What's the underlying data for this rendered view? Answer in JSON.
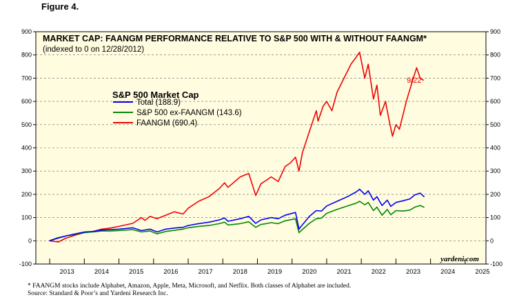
{
  "figure_label": "Figure 4.",
  "chart_data": {
    "type": "line",
    "title": "MARKET CAP: FAANGM PERFORMANCE RELATIVE TO S&P 500 WITH & WITHOUT FAANGM*",
    "subtitle": "(indexed to 0 on 12/28/2012)",
    "legend_title": "S&P 500 Market Cap",
    "legend_position": "top-left",
    "xlabel": "",
    "ylabel": "",
    "x_tick_labels": [
      "2013",
      "2014",
      "2015",
      "2016",
      "2017",
      "2018",
      "2019",
      "2020",
      "2021",
      "2022",
      "2023",
      "2024",
      "2025"
    ],
    "xlim": [
      2012.6,
      2025.6
    ],
    "y_ticks": [
      -100,
      0,
      100,
      200,
      300,
      400,
      500,
      600,
      700,
      800,
      900
    ],
    "ylim": [
      -100,
      900
    ],
    "grid": "horizontal-dashed",
    "annotation": "9/22",
    "watermark": "yardeni.com",
    "colors": {
      "Total": "#0000ee",
      "ExFAANGM": "#008800",
      "FAANGM": "#ee0000",
      "background": "#fffce0"
    },
    "series": [
      {
        "name": "Total (188.9)",
        "color": "#0000ee",
        "points": [
          [
            2012.99,
            0
          ],
          [
            2013.25,
            12
          ],
          [
            2013.5,
            22
          ],
          [
            2013.75,
            30
          ],
          [
            2014.0,
            38
          ],
          [
            2014.25,
            40
          ],
          [
            2014.5,
            46
          ],
          [
            2014.75,
            48
          ],
          [
            2015.0,
            50
          ],
          [
            2015.4,
            56
          ],
          [
            2015.65,
            44
          ],
          [
            2015.9,
            50
          ],
          [
            2016.1,
            38
          ],
          [
            2016.35,
            50
          ],
          [
            2016.6,
            55
          ],
          [
            2016.85,
            58
          ],
          [
            2017.0,
            66
          ],
          [
            2017.3,
            74
          ],
          [
            2017.6,
            80
          ],
          [
            2017.9,
            90
          ],
          [
            2018.05,
            98
          ],
          [
            2018.15,
            84
          ],
          [
            2018.5,
            95
          ],
          [
            2018.75,
            105
          ],
          [
            2018.95,
            75
          ],
          [
            2019.1,
            90
          ],
          [
            2019.4,
            100
          ],
          [
            2019.6,
            95
          ],
          [
            2019.8,
            110
          ],
          [
            2020.1,
            122
          ],
          [
            2020.2,
            50
          ],
          [
            2020.25,
            60
          ],
          [
            2020.5,
            105
          ],
          [
            2020.7,
            130
          ],
          [
            2020.85,
            128
          ],
          [
            2021.0,
            150
          ],
          [
            2021.3,
            170
          ],
          [
            2021.6,
            190
          ],
          [
            2021.85,
            210
          ],
          [
            2021.95,
            222
          ],
          [
            2022.1,
            200
          ],
          [
            2022.2,
            215
          ],
          [
            2022.35,
            175
          ],
          [
            2022.45,
            190
          ],
          [
            2022.6,
            152
          ],
          [
            2022.75,
            175
          ],
          [
            2022.85,
            148
          ],
          [
            2023.0,
            165
          ],
          [
            2023.2,
            172
          ],
          [
            2023.4,
            180
          ],
          [
            2023.55,
            198
          ],
          [
            2023.7,
            205
          ],
          [
            2023.82,
            188.9
          ]
        ]
      },
      {
        "name": "S&P 500 ex-FAANGM (143.6)",
        "color": "#008800",
        "points": [
          [
            2012.99,
            0
          ],
          [
            2013.25,
            14
          ],
          [
            2013.5,
            22
          ],
          [
            2013.75,
            28
          ],
          [
            2014.0,
            35
          ],
          [
            2014.25,
            38
          ],
          [
            2014.5,
            42
          ],
          [
            2014.75,
            42
          ],
          [
            2015.0,
            44
          ],
          [
            2015.4,
            48
          ],
          [
            2015.65,
            38
          ],
          [
            2015.9,
            42
          ],
          [
            2016.1,
            30
          ],
          [
            2016.35,
            40
          ],
          [
            2016.6,
            45
          ],
          [
            2016.85,
            50
          ],
          [
            2017.0,
            56
          ],
          [
            2017.3,
            62
          ],
          [
            2017.6,
            66
          ],
          [
            2017.9,
            74
          ],
          [
            2018.05,
            80
          ],
          [
            2018.15,
            68
          ],
          [
            2018.5,
            74
          ],
          [
            2018.75,
            82
          ],
          [
            2018.95,
            58
          ],
          [
            2019.1,
            70
          ],
          [
            2019.4,
            78
          ],
          [
            2019.6,
            74
          ],
          [
            2019.8,
            86
          ],
          [
            2020.1,
            95
          ],
          [
            2020.2,
            35
          ],
          [
            2020.25,
            42
          ],
          [
            2020.5,
            75
          ],
          [
            2020.7,
            95
          ],
          [
            2020.85,
            98
          ],
          [
            2021.0,
            118
          ],
          [
            2021.3,
            135
          ],
          [
            2021.6,
            150
          ],
          [
            2021.85,
            162
          ],
          [
            2021.95,
            170
          ],
          [
            2022.1,
            155
          ],
          [
            2022.2,
            165
          ],
          [
            2022.35,
            130
          ],
          [
            2022.45,
            145
          ],
          [
            2022.6,
            110
          ],
          [
            2022.75,
            135
          ],
          [
            2022.85,
            112
          ],
          [
            2023.0,
            130
          ],
          [
            2023.2,
            128
          ],
          [
            2023.4,
            132
          ],
          [
            2023.55,
            145
          ],
          [
            2023.7,
            152
          ],
          [
            2023.82,
            143.6
          ]
        ]
      },
      {
        "name": "FAANGM (690.4)",
        "color": "#ee0000",
        "points": [
          [
            2012.99,
            0
          ],
          [
            2013.25,
            -5
          ],
          [
            2013.45,
            10
          ],
          [
            2013.75,
            25
          ],
          [
            2014.0,
            35
          ],
          [
            2014.25,
            40
          ],
          [
            2014.5,
            50
          ],
          [
            2014.75,
            55
          ],
          [
            2015.0,
            62
          ],
          [
            2015.4,
            75
          ],
          [
            2015.65,
            100
          ],
          [
            2015.75,
            88
          ],
          [
            2015.9,
            105
          ],
          [
            2016.1,
            95
          ],
          [
            2016.35,
            110
          ],
          [
            2016.6,
            125
          ],
          [
            2016.85,
            115
          ],
          [
            2017.0,
            140
          ],
          [
            2017.3,
            170
          ],
          [
            2017.6,
            190
          ],
          [
            2017.9,
            225
          ],
          [
            2018.05,
            250
          ],
          [
            2018.15,
            230
          ],
          [
            2018.5,
            275
          ],
          [
            2018.75,
            290
          ],
          [
            2018.95,
            195
          ],
          [
            2019.1,
            245
          ],
          [
            2019.4,
            275
          ],
          [
            2019.6,
            255
          ],
          [
            2019.8,
            320
          ],
          [
            2019.95,
            335
          ],
          [
            2020.1,
            360
          ],
          [
            2020.2,
            300
          ],
          [
            2020.3,
            380
          ],
          [
            2020.5,
            470
          ],
          [
            2020.7,
            560
          ],
          [
            2020.75,
            515
          ],
          [
            2020.9,
            580
          ],
          [
            2021.0,
            600
          ],
          [
            2021.15,
            560
          ],
          [
            2021.3,
            640
          ],
          [
            2021.5,
            700
          ],
          [
            2021.7,
            760
          ],
          [
            2021.85,
            790
          ],
          [
            2021.95,
            812
          ],
          [
            2022.1,
            700
          ],
          [
            2022.2,
            760
          ],
          [
            2022.35,
            610
          ],
          [
            2022.45,
            670
          ],
          [
            2022.55,
            540
          ],
          [
            2022.7,
            600
          ],
          [
            2022.8,
            520
          ],
          [
            2022.9,
            450
          ],
          [
            2023.0,
            500
          ],
          [
            2023.1,
            480
          ],
          [
            2023.3,
            600
          ],
          [
            2023.5,
            700
          ],
          [
            2023.6,
            745
          ],
          [
            2023.7,
            700
          ],
          [
            2023.8,
            690.4
          ]
        ]
      }
    ]
  },
  "footnote": {
    "line1": "*  FAANGM stocks include Alphabet, Amazon, Apple, Meta, Microsoft, and Netflix. Both classes of Alphabet are included.",
    "line2": "Source: Standard & Poor’s and Yardeni Research Inc."
  }
}
